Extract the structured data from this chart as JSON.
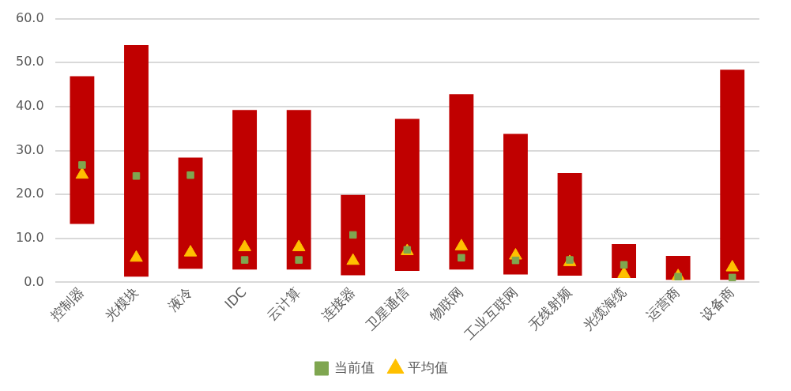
{
  "chart_data": {
    "type": "bar",
    "categories": [
      "控制器",
      "光模块",
      "液冷",
      "IDC",
      "云计算",
      "连接器",
      "卫星通信",
      "物联网",
      "工业互联网",
      "无线射频",
      "光缆海缆",
      "运营商",
      "设备商"
    ],
    "series": [
      {
        "color": "#c00000",
        "base": [
          13.3,
          1.3,
          3.1,
          2.9,
          2.9,
          1.6,
          2.6,
          2.9,
          1.8,
          1.5,
          1.0,
          0.6,
          0.6
        ],
        "values": [
          33.6,
          52.7,
          25.3,
          36.3,
          36.3,
          18.3,
          34.6,
          39.9,
          32.0,
          23.4,
          7.7,
          5.4,
          47.8
        ]
      },
      {
        "type": "scatter",
        "name": "平均值",
        "color": "#ffc000",
        "marker": "triangle",
        "x": [
          "控制器",
          "光模块",
          "液冷",
          "IDC",
          "云计算",
          "连接器",
          "卫星通信",
          "物联网",
          "工业互联网",
          "无线射频",
          "光缆海缆",
          "运营商",
          "设备商"
        ],
        "values": [
          24.5,
          5.6,
          6.8,
          8.0,
          8.0,
          4.9,
          7.1,
          8.2,
          6.1,
          4.6,
          1.9,
          1.4,
          3.4
        ]
      },
      {
        "type": "scatter",
        "name": "当前值",
        "color": "#7fa650",
        "marker": "square",
        "x": [
          "控制器",
          "光模块",
          "液冷",
          "IDC",
          "云计算",
          "连接器",
          "卫星通信",
          "物联网",
          "工业互联网",
          "无线射频",
          "光缆海缆",
          "运营商",
          "设备商"
        ],
        "values": [
          26.7,
          24.2,
          24.4,
          5.1,
          5.1,
          10.8,
          7.4,
          5.6,
          5.0,
          5.1,
          4.0,
          1.3,
          1.1
        ]
      }
    ],
    "ylim": [
      0,
      60
    ],
    "yticks": [
      {
        "value": 0,
        "label": "0.0"
      },
      {
        "value": 10,
        "label": "10.0"
      },
      {
        "value": 20,
        "label": "20.0"
      },
      {
        "value": 30,
        "label": "30.0"
      },
      {
        "value": 40,
        "label": "40.0"
      },
      {
        "value": 50,
        "label": "50.0"
      },
      {
        "value": 60,
        "label": "60.0"
      }
    ],
    "grid": "y",
    "legend": "bottom"
  }
}
